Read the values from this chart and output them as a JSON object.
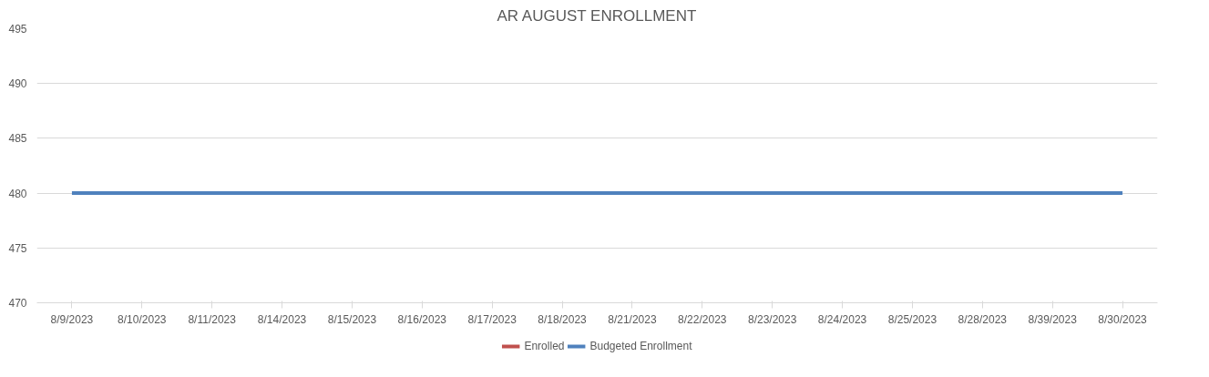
{
  "chart_data": {
    "type": "line",
    "title": "AR AUGUST ENROLLMENT",
    "categories": [
      "8/9/2023",
      "8/10/2023",
      "8/11/2023",
      "8/14/2023",
      "8/15/2023",
      "8/16/2023",
      "8/17/2023",
      "8/18/2023",
      "8/21/2023",
      "8/22/2023",
      "8/23/2023",
      "8/24/2023",
      "8/25/2023",
      "8/28/2023",
      "8/39/2023",
      "8/30/2023"
    ],
    "series": [
      {
        "name": "Enrolled",
        "color": "#c0504d",
        "values": [
          null,
          null,
          null,
          null,
          null,
          null,
          null,
          null,
          null,
          null,
          null,
          null,
          null,
          null,
          null,
          null
        ]
      },
      {
        "name": "Budgeted Enrollment",
        "color": "#4f81bd",
        "values": [
          480,
          480,
          480,
          480,
          480,
          480,
          480,
          480,
          480,
          480,
          480,
          480,
          480,
          480,
          480,
          480
        ]
      }
    ],
    "ylim": [
      470,
      495
    ],
    "yticks": [
      470,
      475,
      480,
      485,
      490,
      495
    ],
    "grid": "y",
    "legend": "bottom",
    "marker": "none",
    "line_style": "solid"
  }
}
